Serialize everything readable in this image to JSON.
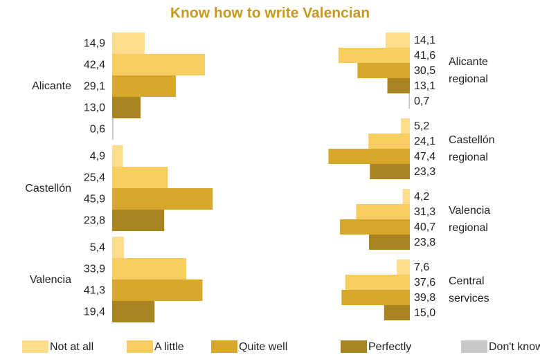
{
  "chart_data": [
    {
      "type": "bar",
      "orientation": "right",
      "title": "Know how to write Valencian",
      "categories": [
        "Alicante",
        "Castellón",
        "Valencia"
      ],
      "xlim": [
        0,
        50
      ],
      "series": [
        {
          "name": "Not at all",
          "color": "#fddc8c",
          "values": [
            14.9,
            4.9,
            5.4
          ],
          "value_labels": [
            "14,9",
            "4,9",
            "5,4"
          ]
        },
        {
          "name": "A little",
          "color": "#f7cd62",
          "values": [
            42.4,
            25.4,
            33.9
          ],
          "value_labels": [
            "42,4",
            "25,4",
            "33,9"
          ]
        },
        {
          "name": "Quite well",
          "color": "#d6a72b",
          "values": [
            29.1,
            45.9,
            41.3
          ],
          "value_labels": [
            "29,1",
            "45,9",
            "41,3"
          ]
        },
        {
          "name": "Perfectly",
          "color": "#a7841f",
          "values": [
            13.0,
            23.8,
            19.4
          ],
          "value_labels": [
            "13,0",
            "23,8",
            "19,4"
          ]
        },
        {
          "name": "Don't know",
          "color": "#c8c8c8",
          "values": [
            0.6,
            null,
            null
          ],
          "value_labels": [
            "0,6",
            null,
            null
          ]
        }
      ]
    },
    {
      "type": "bar",
      "orientation": "left",
      "categories": [
        "Alicante regional",
        "Castellón regional",
        "Valencia regional",
        "Central services"
      ],
      "xlim": [
        0,
        50
      ],
      "series": [
        {
          "color": "#fddc8c",
          "values": [
            14.1,
            5.2,
            4.2,
            7.6
          ],
          "value_labels": [
            "14,1",
            "5,2",
            "4,2",
            "7,6"
          ]
        },
        {
          "color": "#f7cd62",
          "values": [
            41.6,
            24.1,
            31.3,
            37.6
          ],
          "value_labels": [
            "41,6",
            "24,1",
            "31,3",
            "37,6"
          ]
        },
        {
          "color": "#d6a72b",
          "values": [
            30.5,
            47.4,
            40.7,
            39.8
          ],
          "value_labels": [
            "30,5",
            "47,4",
            "40,7",
            "39,8"
          ]
        },
        {
          "color": "#a7841f",
          "values": [
            13.1,
            23.3,
            23.8,
            15.0
          ],
          "value_labels": [
            "13,1",
            "23,3",
            "23,8",
            "15,0"
          ]
        },
        {
          "color": "#c8c8c8",
          "values": [
            0.7,
            null,
            null,
            null
          ],
          "value_labels": [
            "0,7",
            null,
            null,
            null
          ]
        }
      ]
    }
  ]
}
